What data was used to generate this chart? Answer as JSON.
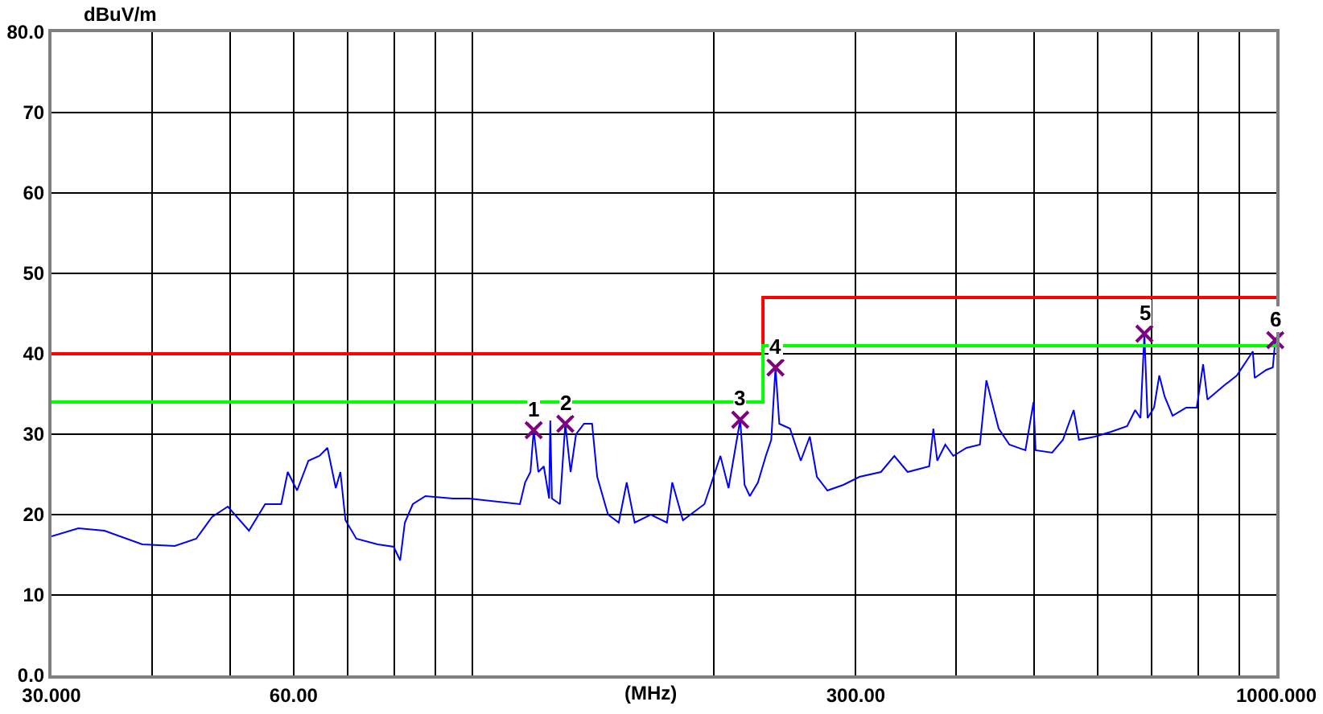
{
  "chart_data": {
    "type": "line",
    "xlabel": "(MHz)",
    "ylabel": "dBuV/m",
    "log": "x",
    "grid": true,
    "xlim": [
      30,
      1000
    ],
    "xticks": [
      {
        "value": 30,
        "label": "30.000"
      },
      {
        "value": 40,
        "label": null
      },
      {
        "value": 50,
        "label": null
      },
      {
        "value": 60,
        "label": "60.00"
      },
      {
        "value": 70,
        "label": null
      },
      {
        "value": 80,
        "label": null
      },
      {
        "value": 90,
        "label": null
      },
      {
        "value": 100,
        "label": null
      },
      {
        "value": 200,
        "label": null
      },
      {
        "value": 300,
        "label": "300.00"
      },
      {
        "value": 400,
        "label": null
      },
      {
        "value": 500,
        "label": null
      },
      {
        "value": 600,
        "label": null
      },
      {
        "value": 700,
        "label": null
      },
      {
        "value": 800,
        "label": null
      },
      {
        "value": 900,
        "label": null
      },
      {
        "value": 1000,
        "label": "1000.000"
      }
    ],
    "ylim": [
      0,
      80
    ],
    "yticks": [
      {
        "value": 0,
        "label": "0.0"
      },
      10,
      20,
      30,
      40,
      50,
      60,
      70,
      {
        "value": 80,
        "label": "80.0"
      }
    ],
    "series": [
      {
        "color": "#0000ff",
        "x": [
          30,
          32.4,
          34.9,
          38.9,
          42.7,
          45.4,
          47.5,
          49.7,
          52.8,
          55.3,
          57.9,
          59,
          60.6,
          62.6,
          64.6,
          66.1,
          67.7,
          68.6,
          69.6,
          71.8,
          76.3,
          79.9,
          81.4,
          82.5,
          84.4,
          87.5,
          94.7,
          99.1,
          114.7,
          116.4,
          118.2,
          119.3,
          120.9,
          122.8,
          124.7,
          125.1,
          125.7,
          128.6,
          130.6,
          132.6,
          134.7,
          137.8,
          141,
          143.1,
          147.6,
          152.2,
          155.7,
          159.3,
          166.8,
          174.7,
          177.4,
          182.9,
          194.5,
          197.5,
          203.6,
          208.4,
          215.5,
          218.2,
          221.5,
          226.7,
          231.9,
          235.5,
          238.4,
          241,
          248.5,
          256.3,
          263,
          268.4,
          276.6,
          289.6,
          303.2,
          322.4,
          335,
          348,
          370.2,
          374.6,
          378.8,
          387.6,
          396.6,
          412,
          428,
          436,
          444.8,
          451.6,
          465.7,
          487.6,
          499,
          502,
          526.3,
          542.8,
          559.8,
          568.3,
          595.1,
          623.1,
          652.4,
          667.6,
          677.8,
          685.4,
          691.7,
          704.6,
          715.3,
          726.2,
          743.1,
          772.4,
          796.2,
          810.9,
          821,
          859.7,
          893.1,
          935,
          940,
          971.9,
          990,
          997
        ],
        "values": [
          17.3,
          18.3,
          18.0,
          16.3,
          16.1,
          17.0,
          19.7,
          21.0,
          18.0,
          21.3,
          21.3,
          25.3,
          23.0,
          26.7,
          27.3,
          28.3,
          23.3,
          25.3,
          19.3,
          17.0,
          16.3,
          16.0,
          14.3,
          19.0,
          21.3,
          22.3,
          22.0,
          22.0,
          21.3,
          24.0,
          25.3,
          30.5,
          25.3,
          26.0,
          22.0,
          31.7,
          22.0,
          21.3,
          31.3,
          25.3,
          30.0,
          31.3,
          31.3,
          24.7,
          20.0,
          19.0,
          24.0,
          19.0,
          20.0,
          19.0,
          24.0,
          19.3,
          21.3,
          23.3,
          27.3,
          23.3,
          31.8,
          23.7,
          22.3,
          24.0,
          27.3,
          29.3,
          38.3,
          31.3,
          30.7,
          26.7,
          29.7,
          24.7,
          23.0,
          23.7,
          24.7,
          25.3,
          27.3,
          25.3,
          26.0,
          30.7,
          26.7,
          28.7,
          27.3,
          28.3,
          28.7,
          36.7,
          33.3,
          30.7,
          28.7,
          28.0,
          34.0,
          28.0,
          27.7,
          29.3,
          33.0,
          29.3,
          29.7,
          30.3,
          31.0,
          33.0,
          32.0,
          42.5,
          32.0,
          33.3,
          37.3,
          34.7,
          32.3,
          33.3,
          33.3,
          38.7,
          34.3,
          36.0,
          37.3,
          40.3,
          37.0,
          38.0,
          38.3,
          41.7
        ]
      },
      {
        "type": "step",
        "color": "#ff0000",
        "x": [
          30,
          230,
          1000
        ],
        "values": [
          40,
          47,
          47
        ]
      },
      {
        "type": "step",
        "color": "#00ff00",
        "x": [
          30,
          230,
          1000
        ],
        "values": [
          34,
          41,
          41
        ]
      },
      {
        "type": "scatter",
        "color": "#800080",
        "marker": "cross",
        "x": [
          119.3,
          130.6,
          215.5,
          238.4,
          685.4,
          997
        ],
        "values": [
          30.5,
          31.3,
          31.8,
          38.3,
          42.5,
          41.7
        ]
      }
    ],
    "annotations": [
      {
        "text": "1",
        "x": 119.3,
        "y": 30.5
      },
      {
        "text": "2",
        "x": 130.6,
        "y": 31.3
      },
      {
        "text": "3",
        "x": 215.5,
        "y": 31.8
      },
      {
        "text": "4",
        "x": 238.4,
        "y": 38.3
      },
      {
        "text": "5",
        "x": 685.4,
        "y": 42.5
      },
      {
        "text": "6",
        "x": 997,
        "y": 41.7
      }
    ]
  }
}
